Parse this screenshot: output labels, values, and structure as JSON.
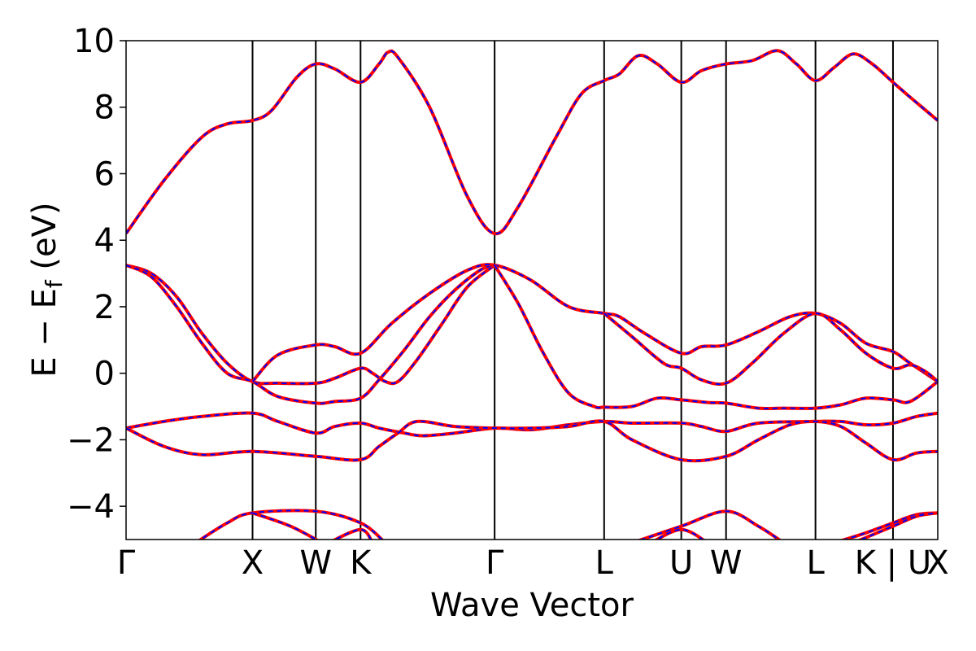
{
  "chart_data": {
    "type": "line",
    "title": "",
    "xlabel": "Wave Vector",
    "ylabel_parts": {
      "main": "E − E",
      "subscript": "f",
      "suffix": " (eV)"
    },
    "ylim": [
      -5,
      10
    ],
    "yticks": [
      10,
      8,
      6,
      4,
      2,
      0,
      -2,
      -4
    ],
    "ytick_labels": [
      "10",
      "8",
      "6",
      "4",
      "2",
      "0",
      "−2",
      "−4"
    ],
    "grid": false,
    "legend": "none",
    "kpoints": [
      {
        "label": "Γ",
        "pos": 0.0
      },
      {
        "label": "X",
        "pos": 1.0
      },
      {
        "label": "W",
        "pos": 1.5
      },
      {
        "label": "K",
        "pos": 1.854
      },
      {
        "label": "Γ",
        "pos": 2.914
      },
      {
        "label": "L",
        "pos": 3.78
      },
      {
        "label": "U",
        "pos": 4.39
      },
      {
        "label": "W",
        "pos": 4.744
      },
      {
        "label": "L",
        "pos": 5.451
      },
      {
        "label": "K | U",
        "pos": 6.064
      },
      {
        "label": "X",
        "pos": 6.418
      }
    ],
    "colors": {
      "solid": "#ff0000",
      "dashed": "#0000ff"
    },
    "series": [
      {
        "values": [
          [
            0,
            4.2
          ],
          [
            0.3,
            5.8
          ],
          [
            0.6,
            7.1
          ],
          [
            0.8,
            7.5
          ],
          [
            1.0,
            7.6
          ],
          [
            1.15,
            7.9
          ],
          [
            1.35,
            8.9
          ],
          [
            1.5,
            9.3
          ],
          [
            1.65,
            9.15
          ],
          [
            1.854,
            8.75
          ],
          [
            2.0,
            9.3
          ],
          [
            2.07,
            9.65
          ],
          [
            2.15,
            9.5
          ],
          [
            2.4,
            8.0
          ],
          [
            2.7,
            5.3
          ],
          [
            2.914,
            4.2
          ],
          [
            3.1,
            5.0
          ],
          [
            3.4,
            7.1
          ],
          [
            3.6,
            8.4
          ],
          [
            3.78,
            8.8
          ],
          [
            3.9,
            9.0
          ],
          [
            4.05,
            9.55
          ],
          [
            4.2,
            9.3
          ],
          [
            4.39,
            8.75
          ],
          [
            4.55,
            9.1
          ],
          [
            4.744,
            9.3
          ],
          [
            4.95,
            9.4
          ],
          [
            5.15,
            9.7
          ],
          [
            5.3,
            9.3
          ],
          [
            5.451,
            8.8
          ],
          [
            5.6,
            9.2
          ],
          [
            5.75,
            9.6
          ],
          [
            5.9,
            9.3
          ],
          [
            6.064,
            8.75
          ],
          [
            6.2,
            8.3
          ],
          [
            6.418,
            7.6
          ]
        ]
      },
      {
        "values": [
          [
            0,
            3.25
          ],
          [
            0.2,
            3.0
          ],
          [
            0.4,
            2.3
          ],
          [
            0.6,
            1.2
          ],
          [
            0.8,
            0.3
          ],
          [
            1.0,
            -0.25
          ],
          [
            1.2,
            -0.3
          ],
          [
            1.5,
            -0.3
          ],
          [
            1.65,
            -0.15
          ],
          [
            1.854,
            0.15
          ],
          [
            1.95,
            0.0
          ],
          [
            2.05,
            -0.25
          ],
          [
            2.15,
            -0.25
          ],
          [
            2.3,
            0.4
          ],
          [
            2.5,
            1.5
          ],
          [
            2.7,
            2.6
          ],
          [
            2.914,
            3.25
          ]
        ]
      },
      {
        "values": [
          [
            0,
            3.25
          ],
          [
            0.2,
            2.9
          ],
          [
            0.4,
            2.0
          ],
          [
            0.6,
            0.9
          ],
          [
            0.8,
            0.0
          ],
          [
            1.0,
            -0.25
          ],
          [
            1.2,
            -0.7
          ],
          [
            1.5,
            -0.9
          ],
          [
            1.65,
            -0.85
          ],
          [
            1.854,
            -0.75
          ],
          [
            2.0,
            -0.2
          ],
          [
            2.2,
            0.7
          ],
          [
            2.4,
            1.7
          ],
          [
            2.6,
            2.5
          ],
          [
            2.8,
            3.1
          ],
          [
            2.914,
            3.25
          ]
        ]
      },
      {
        "values": [
          [
            1.0,
            -0.25
          ],
          [
            1.2,
            0.55
          ],
          [
            1.5,
            0.85
          ],
          [
            1.65,
            0.8
          ],
          [
            1.854,
            0.6
          ],
          [
            2.1,
            1.5
          ],
          [
            2.4,
            2.4
          ],
          [
            2.7,
            3.1
          ],
          [
            2.914,
            3.25
          ],
          [
            3.2,
            2.8
          ],
          [
            3.5,
            2.0
          ],
          [
            3.78,
            1.8
          ],
          [
            3.9,
            1.7
          ],
          [
            4.1,
            1.2
          ],
          [
            4.39,
            0.6
          ],
          [
            4.55,
            0.8
          ],
          [
            4.744,
            0.85
          ],
          [
            5.0,
            1.25
          ],
          [
            5.25,
            1.7
          ],
          [
            5.451,
            1.8
          ],
          [
            5.65,
            1.5
          ],
          [
            5.85,
            0.9
          ],
          [
            6.064,
            0.65
          ],
          [
            6.2,
            0.3
          ],
          [
            6.418,
            -0.25
          ]
        ]
      },
      {
        "values": [
          [
            2.914,
            3.25
          ],
          [
            3.1,
            2.1
          ],
          [
            3.3,
            0.6
          ],
          [
            3.5,
            -0.6
          ],
          [
            3.7,
            -1.0
          ],
          [
            3.78,
            -1.02
          ],
          [
            4.0,
            -1.0
          ],
          [
            4.2,
            -0.75
          ],
          [
            4.39,
            -0.8
          ],
          [
            4.6,
            -0.88
          ],
          [
            4.744,
            -0.9
          ],
          [
            5.0,
            -1.05
          ],
          [
            5.2,
            -1.05
          ],
          [
            5.451,
            -1.05
          ],
          [
            5.65,
            -0.95
          ],
          [
            5.85,
            -0.75
          ],
          [
            6.064,
            -0.8
          ],
          [
            6.2,
            -0.85
          ],
          [
            6.418,
            -0.25
          ]
        ]
      },
      {
        "values": [
          [
            3.78,
            1.8
          ],
          [
            4.0,
            1.1
          ],
          [
            4.25,
            0.3
          ],
          [
            4.39,
            0.15
          ],
          [
            4.55,
            -0.2
          ],
          [
            4.744,
            -0.3
          ],
          [
            4.95,
            0.3
          ],
          [
            5.2,
            1.2
          ],
          [
            5.451,
            1.8
          ],
          [
            5.65,
            1.3
          ],
          [
            5.85,
            0.6
          ],
          [
            6.064,
            0.15
          ],
          [
            6.2,
            0.25
          ],
          [
            6.32,
            0.05
          ],
          [
            6.418,
            -0.25
          ]
        ]
      },
      {
        "values": [
          [
            0,
            -1.65
          ],
          [
            0.3,
            -1.45
          ],
          [
            0.6,
            -1.3
          ],
          [
            1.0,
            -1.2
          ],
          [
            1.2,
            -1.45
          ],
          [
            1.5,
            -1.8
          ],
          [
            1.65,
            -1.6
          ],
          [
            1.854,
            -1.5
          ],
          [
            2.0,
            -1.65
          ],
          [
            2.2,
            -1.8
          ],
          [
            2.35,
            -1.88
          ],
          [
            2.6,
            -1.8
          ],
          [
            2.914,
            -1.65
          ],
          [
            3.2,
            -1.7
          ],
          [
            3.5,
            -1.55
          ],
          [
            3.78,
            -1.45
          ],
          [
            4.0,
            -1.5
          ],
          [
            4.39,
            -1.5
          ],
          [
            4.55,
            -1.6
          ],
          [
            4.744,
            -1.75
          ],
          [
            5.0,
            -1.5
          ],
          [
            5.451,
            -1.45
          ],
          [
            5.65,
            -1.45
          ],
          [
            5.85,
            -1.55
          ],
          [
            6.064,
            -1.5
          ],
          [
            6.25,
            -1.3
          ],
          [
            6.418,
            -1.2
          ]
        ]
      },
      {
        "values": [
          [
            0,
            -1.65
          ],
          [
            0.3,
            -2.2
          ],
          [
            0.6,
            -2.45
          ],
          [
            1.0,
            -2.35
          ],
          [
            1.5,
            -2.5
          ],
          [
            1.854,
            -2.6
          ],
          [
            2.0,
            -2.2
          ],
          [
            2.15,
            -1.8
          ],
          [
            2.3,
            -1.45
          ],
          [
            2.6,
            -1.6
          ],
          [
            2.914,
            -1.65
          ],
          [
            3.2,
            -1.65
          ],
          [
            3.5,
            -1.6
          ],
          [
            3.78,
            -1.45
          ],
          [
            4.0,
            -2.0
          ],
          [
            4.39,
            -2.6
          ],
          [
            4.744,
            -2.5
          ],
          [
            5.0,
            -2.0
          ],
          [
            5.25,
            -1.55
          ],
          [
            5.451,
            -1.45
          ],
          [
            5.65,
            -1.6
          ],
          [
            5.85,
            -2.1
          ],
          [
            6.064,
            -2.6
          ],
          [
            6.25,
            -2.4
          ],
          [
            6.418,
            -2.35
          ]
        ]
      },
      {
        "values": [
          [
            0.55,
            -5.1
          ],
          [
            0.8,
            -4.5
          ],
          [
            1.0,
            -4.2
          ],
          [
            1.5,
            -4.15
          ],
          [
            1.854,
            -4.5
          ],
          [
            2.05,
            -5.1
          ]
        ]
      },
      {
        "values": [
          [
            1.0,
            -4.2
          ],
          [
            1.3,
            -4.6
          ],
          [
            1.55,
            -5.1
          ]
        ]
      },
      {
        "values": [
          [
            1.6,
            -5.1
          ],
          [
            1.854,
            -4.7
          ],
          [
            1.95,
            -5.1
          ]
        ]
      },
      {
        "values": [
          [
            4.0,
            -5.1
          ],
          [
            4.39,
            -4.6
          ],
          [
            4.744,
            -4.15
          ],
          [
            5.0,
            -4.6
          ],
          [
            5.2,
            -5.1
          ]
        ]
      },
      {
        "values": [
          [
            4.15,
            -5.1
          ],
          [
            4.39,
            -4.7
          ],
          [
            4.6,
            -5.1
          ]
        ]
      },
      {
        "values": [
          [
            5.6,
            -5.1
          ],
          [
            5.85,
            -4.8
          ],
          [
            6.064,
            -4.5
          ],
          [
            6.25,
            -4.25
          ],
          [
            6.418,
            -4.2
          ]
        ]
      },
      {
        "values": [
          [
            5.75,
            -5.1
          ],
          [
            6.064,
            -4.6
          ],
          [
            6.25,
            -4.3
          ],
          [
            6.418,
            -4.2
          ]
        ]
      }
    ]
  }
}
